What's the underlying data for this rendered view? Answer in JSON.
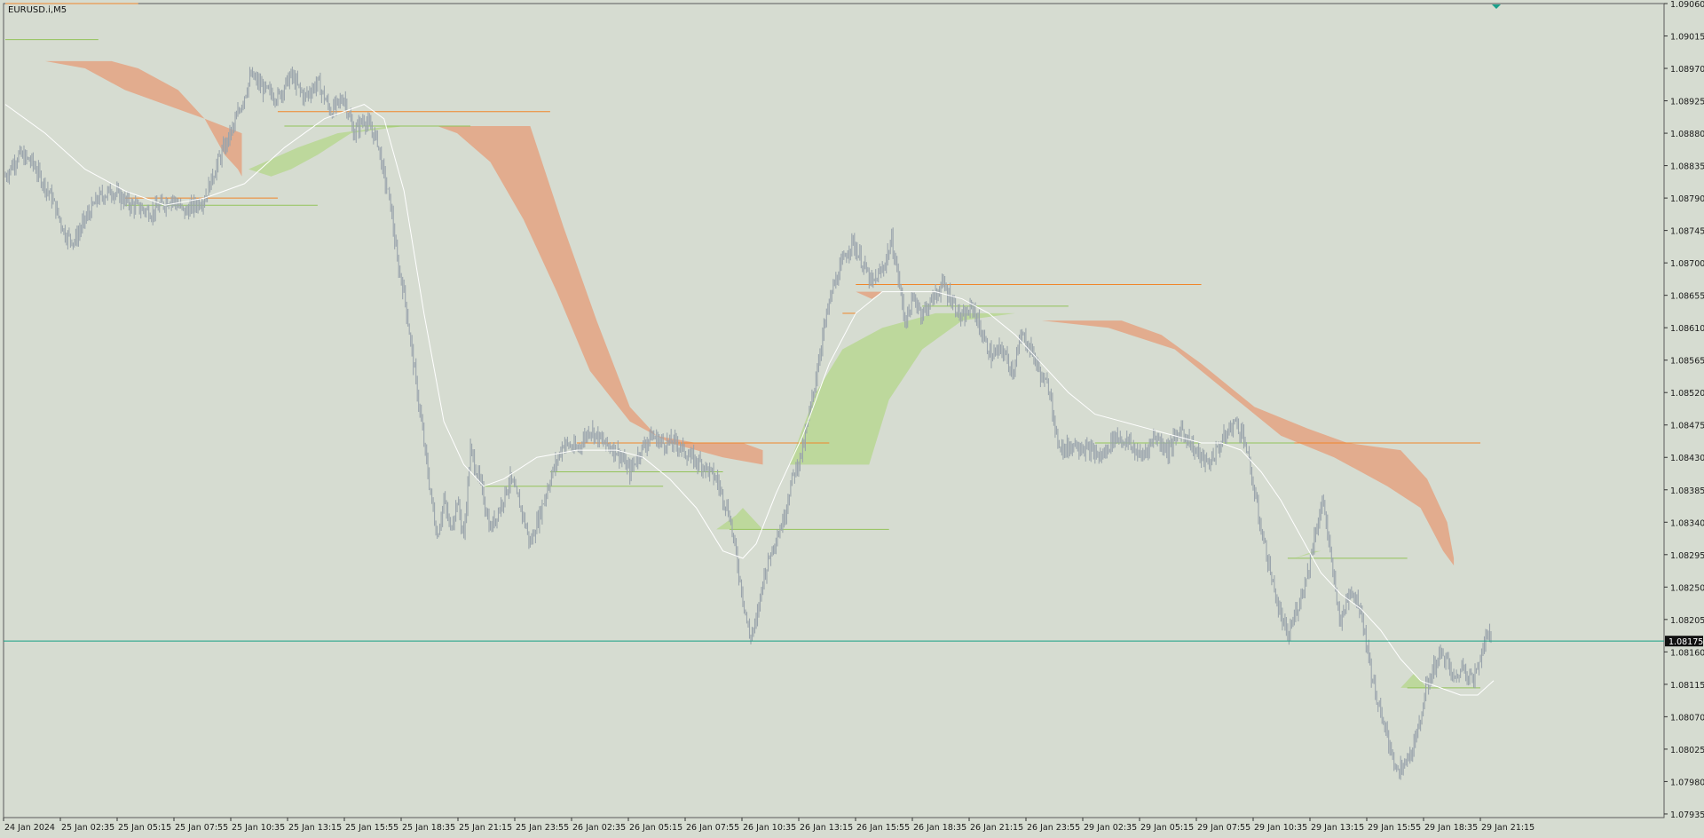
{
  "symbol": "EURUSD.i,M5",
  "current_price": "1.08175",
  "colors": {
    "background": "#d6dcd1",
    "frame": "#5a5a5a",
    "candles": "#9aa4ac",
    "ma": "#ffffff",
    "bear_band": "#e2ac8e",
    "bull_band": "#bdd89c",
    "orange_level": "#f0862a",
    "green_level": "#93c35a",
    "price_line": "#16a085",
    "price_tag_bg": "#111111"
  },
  "chart_data": {
    "type": "candlestick",
    "title": "",
    "xlabel": "",
    "ylabel": "",
    "ylim": [
      1.0793,
      1.0906
    ],
    "price_ticks": [
      "1.09060",
      "1.09015",
      "1.08970",
      "1.08925",
      "1.08880",
      "1.08835",
      "1.08790",
      "1.08745",
      "1.08700",
      "1.08655",
      "1.08610",
      "1.08565",
      "1.08520",
      "1.08475",
      "1.08430",
      "1.08385",
      "1.08340",
      "1.08295",
      "1.08250",
      "1.08205",
      "1.08160",
      "1.08115",
      "1.08070",
      "1.08025",
      "1.07980",
      "1.07935"
    ],
    "time_ticks": [
      "24 Jan 2024",
      "25 Jan 02:35",
      "25 Jan 05:15",
      "25 Jan 07:55",
      "25 Jan 10:35",
      "25 Jan 13:15",
      "25 Jan 15:55",
      "25 Jan 18:35",
      "25 Jan 21:15",
      "25 Jan 23:55",
      "26 Jan 02:35",
      "26 Jan 05:15",
      "26 Jan 07:55",
      "26 Jan 10:35",
      "26 Jan 13:15",
      "26 Jan 15:55",
      "26 Jan 18:35",
      "26 Jan 21:15",
      "26 Jan 23:55",
      "29 Jan 02:35",
      "29 Jan 05:15",
      "29 Jan 07:55",
      "29 Jan 10:35",
      "29 Jan 13:15",
      "29 Jan 15:55",
      "29 Jan 18:35",
      "29 Jan 21:15"
    ],
    "close_path": [
      [
        0,
        1.0882
      ],
      [
        10,
        1.0885
      ],
      [
        20,
        1.0884
      ],
      [
        35,
        1.0879
      ],
      [
        45,
        1.0874
      ],
      [
        52,
        1.0873
      ],
      [
        60,
        1.0876
      ],
      [
        70,
        1.0879
      ],
      [
        80,
        1.088
      ],
      [
        95,
        1.0878
      ],
      [
        110,
        1.0877
      ],
      [
        125,
        1.0879
      ],
      [
        135,
        1.0877
      ],
      [
        150,
        1.0879
      ],
      [
        160,
        1.0884
      ],
      [
        172,
        1.0889
      ],
      [
        185,
        1.0896
      ],
      [
        195,
        1.0894
      ],
      [
        205,
        1.0893
      ],
      [
        215,
        1.0896
      ],
      [
        225,
        1.0893
      ],
      [
        235,
        1.0895
      ],
      [
        245,
        1.0891
      ],
      [
        255,
        1.0893
      ],
      [
        262,
        1.0888
      ],
      [
        270,
        1.089
      ],
      [
        280,
        1.0887
      ],
      [
        285,
        1.0882
      ],
      [
        290,
        1.0878
      ],
      [
        295,
        1.087
      ],
      [
        300,
        1.0866
      ],
      [
        305,
        1.0859
      ],
      [
        310,
        1.0852
      ],
      [
        315,
        1.0845
      ],
      [
        320,
        1.0838
      ],
      [
        325,
        1.0832
      ],
      [
        330,
        1.0837
      ],
      [
        335,
        1.0833
      ],
      [
        340,
        1.0837
      ],
      [
        345,
        1.0832
      ],
      [
        350,
        1.0844
      ],
      [
        358,
        1.0839
      ],
      [
        365,
        1.0833
      ],
      [
        372,
        1.0836
      ],
      [
        380,
        1.084
      ],
      [
        388,
        1.0836
      ],
      [
        395,
        1.0831
      ],
      [
        402,
        1.0835
      ],
      [
        410,
        1.084
      ],
      [
        420,
        1.0845
      ],
      [
        430,
        1.0844
      ],
      [
        440,
        1.0847
      ],
      [
        450,
        1.0845
      ],
      [
        460,
        1.0844
      ],
      [
        470,
        1.0841
      ],
      [
        478,
        1.0844
      ],
      [
        486,
        1.0846
      ],
      [
        495,
        1.0845
      ],
      [
        505,
        1.0845
      ],
      [
        515,
        1.0843
      ],
      [
        525,
        1.0842
      ],
      [
        535,
        1.084
      ],
      [
        545,
        1.0835
      ],
      [
        552,
        1.0827
      ],
      [
        560,
        1.0818
      ],
      [
        565,
        1.082
      ],
      [
        570,
        1.0826
      ],
      [
        578,
        1.0831
      ],
      [
        585,
        1.0834
      ],
      [
        592,
        1.084
      ],
      [
        600,
        1.0844
      ],
      [
        608,
        1.0852
      ],
      [
        615,
        1.086
      ],
      [
        622,
        1.0866
      ],
      [
        630,
        1.087
      ],
      [
        637,
        1.0873
      ],
      [
        645,
        1.087
      ],
      [
        652,
        1.0867
      ],
      [
        660,
        1.0869
      ],
      [
        667,
        1.0873
      ],
      [
        672,
        1.0868
      ],
      [
        677,
        1.0862
      ],
      [
        684,
        1.0865
      ],
      [
        690,
        1.0863
      ],
      [
        698,
        1.0865
      ],
      [
        705,
        1.0867
      ],
      [
        712,
        1.0865
      ],
      [
        720,
        1.0862
      ],
      [
        728,
        1.0864
      ],
      [
        735,
        1.086
      ],
      [
        742,
        1.0857
      ],
      [
        750,
        1.0858
      ],
      [
        758,
        1.0855
      ],
      [
        765,
        1.086
      ],
      [
        772,
        1.0858
      ],
      [
        780,
        1.0854
      ],
      [
        787,
        1.0852
      ],
      [
        790,
        1.0846
      ],
      [
        797,
        1.0844
      ],
      [
        805,
        1.0845
      ],
      [
        815,
        1.0844
      ],
      [
        825,
        1.0843
      ],
      [
        835,
        1.0846
      ],
      [
        845,
        1.0845
      ],
      [
        855,
        1.0843
      ],
      [
        865,
        1.0846
      ],
      [
        875,
        1.0844
      ],
      [
        885,
        1.0847
      ],
      [
        895,
        1.0844
      ],
      [
        905,
        1.0842
      ],
      [
        915,
        1.0845
      ],
      [
        925,
        1.0848
      ],
      [
        932,
        1.0846
      ],
      [
        938,
        1.084
      ],
      [
        945,
        1.0833
      ],
      [
        952,
        1.0827
      ],
      [
        958,
        1.0822
      ],
      [
        965,
        1.0818
      ],
      [
        972,
        1.0822
      ],
      [
        980,
        1.0827
      ],
      [
        986,
        1.0833
      ],
      [
        992,
        1.0837
      ],
      [
        998,
        1.0828
      ],
      [
        1005,
        1.082
      ],
      [
        1012,
        1.0825
      ],
      [
        1020,
        1.0822
      ],
      [
        1028,
        1.0813
      ],
      [
        1035,
        1.0807
      ],
      [
        1042,
        1.0803
      ],
      [
        1048,
        1.0799
      ],
      [
        1055,
        1.0801
      ],
      [
        1062,
        1.0804
      ],
      [
        1068,
        1.081
      ],
      [
        1075,
        1.0814
      ],
      [
        1082,
        1.0816
      ],
      [
        1090,
        1.0812
      ],
      [
        1097,
        1.0814
      ],
      [
        1105,
        1.0812
      ],
      [
        1112,
        1.0817
      ],
      [
        1118,
        1.0819
      ]
    ],
    "ma_path": [
      [
        0,
        1.0892
      ],
      [
        30,
        1.0888
      ],
      [
        60,
        1.0883
      ],
      [
        90,
        1.088
      ],
      [
        120,
        1.0878
      ],
      [
        150,
        1.0879
      ],
      [
        180,
        1.0881
      ],
      [
        210,
        1.0886
      ],
      [
        240,
        1.089
      ],
      [
        270,
        1.0892
      ],
      [
        285,
        1.089
      ],
      [
        300,
        1.088
      ],
      [
        315,
        1.0863
      ],
      [
        330,
        1.0848
      ],
      [
        345,
        1.0842
      ],
      [
        360,
        1.0839
      ],
      [
        375,
        1.084
      ],
      [
        400,
        1.0843
      ],
      [
        430,
        1.0844
      ],
      [
        460,
        1.0844
      ],
      [
        480,
        1.0843
      ],
      [
        500,
        1.084
      ],
      [
        520,
        1.0836
      ],
      [
        540,
        1.083
      ],
      [
        555,
        1.0829
      ],
      [
        565,
        1.0831
      ],
      [
        580,
        1.0838
      ],
      [
        600,
        1.0846
      ],
      [
        620,
        1.0856
      ],
      [
        640,
        1.0863
      ],
      [
        660,
        1.0866
      ],
      [
        680,
        1.0866
      ],
      [
        700,
        1.0866
      ],
      [
        720,
        1.0865
      ],
      [
        740,
        1.0863
      ],
      [
        760,
        1.086
      ],
      [
        780,
        1.0856
      ],
      [
        800,
        1.0852
      ],
      [
        820,
        1.0849
      ],
      [
        840,
        1.0848
      ],
      [
        860,
        1.0847
      ],
      [
        880,
        1.0846
      ],
      [
        900,
        1.0845
      ],
      [
        915,
        1.0845
      ],
      [
        930,
        1.0844
      ],
      [
        945,
        1.0841
      ],
      [
        960,
        1.0837
      ],
      [
        975,
        1.0832
      ],
      [
        990,
        1.0827
      ],
      [
        1005,
        1.0824
      ],
      [
        1020,
        1.0822
      ],
      [
        1035,
        1.0819
      ],
      [
        1050,
        1.0815
      ],
      [
        1065,
        1.0812
      ],
      [
        1080,
        1.0811
      ],
      [
        1095,
        1.081
      ],
      [
        1108,
        1.081
      ],
      [
        1120,
        1.0812
      ]
    ],
    "bear_bands": [
      [
        [
          12,
          1.0898
        ],
        [
          80,
          1.0898
        ],
        [
          100,
          1.0897
        ],
        [
          130,
          1.0894
        ],
        [
          150,
          1.089
        ],
        [
          165,
          1.0885
        ],
        [
          175,
          1.0883
        ],
        [
          178,
          1.0882
        ],
        [
          178,
          1.0888
        ],
        [
          150,
          1.089
        ],
        [
          120,
          1.0892
        ],
        [
          90,
          1.0894
        ],
        [
          60,
          1.0897
        ],
        [
          30,
          1.0898
        ],
        [
          12,
          1.0898
        ]
      ],
      [
        [
          325,
          1.0889
        ],
        [
          395,
          1.0889
        ],
        [
          420,
          1.0875
        ],
        [
          445,
          1.0862
        ],
        [
          470,
          1.085
        ],
        [
          490,
          1.0846
        ],
        [
          520,
          1.0845
        ],
        [
          555,
          1.0845
        ],
        [
          570,
          1.0844
        ],
        [
          570,
          1.0842
        ],
        [
          540,
          1.0843
        ],
        [
          500,
          1.0845
        ],
        [
          470,
          1.0848
        ],
        [
          440,
          1.0855
        ],
        [
          415,
          1.0866
        ],
        [
          390,
          1.0876
        ],
        [
          365,
          1.0884
        ],
        [
          340,
          1.0888
        ],
        [
          325,
          1.0889
        ]
      ],
      [
        [
          780,
          1.0862
        ],
        [
          840,
          1.0862
        ],
        [
          870,
          1.086
        ],
        [
          900,
          1.0856
        ],
        [
          940,
          1.085
        ],
        [
          980,
          1.0847
        ],
        [
          1010,
          1.0845
        ],
        [
          1050,
          1.0844
        ],
        [
          1070,
          1.084
        ],
        [
          1085,
          1.0834
        ],
        [
          1090,
          1.0829
        ],
        [
          1090,
          1.0828
        ],
        [
          1082,
          1.083
        ],
        [
          1065,
          1.0836
        ],
        [
          1040,
          1.0839
        ],
        [
          1000,
          1.0843
        ],
        [
          960,
          1.0846
        ],
        [
          920,
          1.0852
        ],
        [
          880,
          1.0858
        ],
        [
          830,
          1.0861
        ],
        [
          780,
          1.0862
        ]
      ],
      [
        [
          640,
          1.0866
        ],
        [
          660,
          1.0866
        ],
        [
          652,
          1.0865
        ],
        [
          640,
          1.0866
        ]
      ]
    ],
    "bull_bands": [
      [
        [
          183,
          1.0883
        ],
        [
          220,
          1.0886
        ],
        [
          250,
          1.0888
        ],
        [
          290,
          1.0889
        ],
        [
          300,
          1.0889
        ],
        [
          260,
          1.0888
        ],
        [
          235,
          1.0885
        ],
        [
          215,
          1.0883
        ],
        [
          200,
          1.0882
        ],
        [
          183,
          1.0883
        ]
      ],
      [
        [
          590,
          1.0842
        ],
        [
          610,
          1.0852
        ],
        [
          630,
          1.0858
        ],
        [
          660,
          1.0861
        ],
        [
          700,
          1.0863
        ],
        [
          760,
          1.0863
        ],
        [
          720,
          1.0862
        ],
        [
          690,
          1.0858
        ],
        [
          665,
          1.0851
        ],
        [
          650,
          1.0842
        ],
        [
          590,
          1.0842
        ]
      ],
      [
        [
          535,
          1.0833
        ],
        [
          550,
          1.0835
        ],
        [
          555,
          1.0836
        ],
        [
          560,
          1.0835
        ],
        [
          570,
          1.0833
        ],
        [
          535,
          1.0833
        ]
      ],
      [
        [
          970,
          1.0829
        ],
        [
          985,
          1.083
        ],
        [
          990,
          1.083
        ],
        [
          970,
          1.0829
        ]
      ],
      [
        [
          1050,
          1.0811
        ],
        [
          1060,
          1.0813
        ],
        [
          1070,
          1.0811
        ],
        [
          1050,
          1.0811
        ]
      ]
    ],
    "orange_levels": [
      [
        0,
        100,
        1.0906
      ],
      [
        90,
        205,
        1.0879
      ],
      [
        205,
        410,
        1.0891
      ],
      [
        430,
        620,
        1.0845
      ],
      [
        640,
        900,
        1.0867
      ],
      [
        630,
        640,
        1.0863
      ],
      [
        900,
        1110,
        1.0845
      ]
    ],
    "green_levels": [
      [
        0,
        70,
        1.0901
      ],
      [
        90,
        235,
        1.0878
      ],
      [
        210,
        350,
        1.0889
      ],
      [
        360,
        495,
        1.0839
      ],
      [
        410,
        540,
        1.0841
      ],
      [
        545,
        665,
        1.0833
      ],
      [
        690,
        800,
        1.0864
      ],
      [
        820,
        970,
        1.0845
      ],
      [
        965,
        1055,
        1.0829
      ],
      [
        1055,
        1110,
        1.0811
      ]
    ],
    "current_price": 1.08175
  }
}
